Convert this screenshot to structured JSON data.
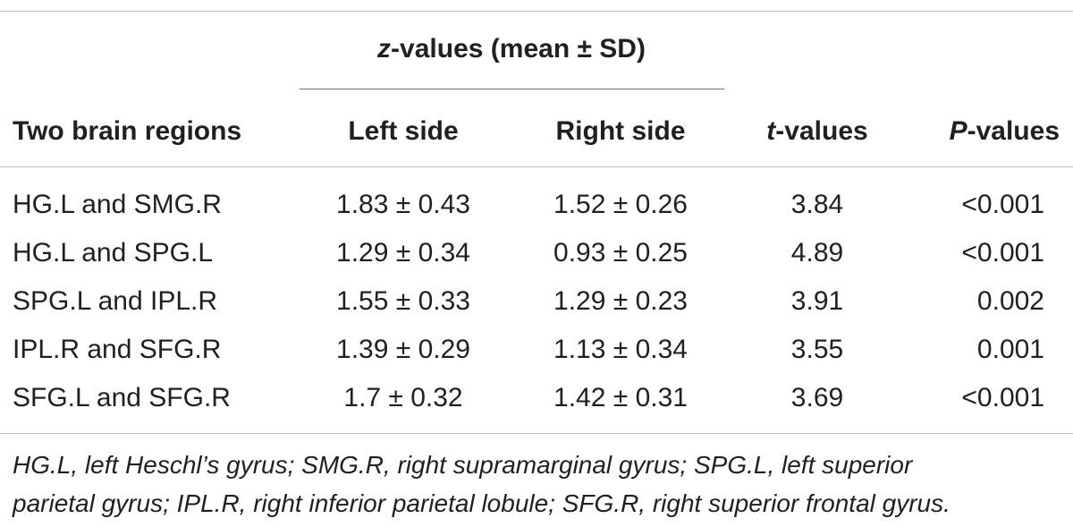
{
  "table": {
    "group_header": {
      "variable": "z",
      "suffix": "-values (mean ± SD)"
    },
    "columns": {
      "region": "Two brain regions",
      "left": "Left side",
      "right": "Right side",
      "t_var": "t",
      "t_suffix": "-values",
      "p_var": "P",
      "p_suffix": "-values"
    },
    "rows": [
      {
        "region": "HG.L and SMG.R",
        "left": "1.83 ± 0.43",
        "right": "1.52 ± 0.26",
        "t": "3.84",
        "p": "<0.001"
      },
      {
        "region": "HG.L and SPG.L",
        "left": "1.29 ± 0.34",
        "right": "0.93 ± 0.25",
        "t": "4.89",
        "p": "<0.001"
      },
      {
        "region": "SPG.L and IPL.R",
        "left": "1.55 ± 0.33",
        "right": "1.29 ± 0.23",
        "t": "3.91",
        "p": "0.002"
      },
      {
        "region": "IPL.R and SFG.R",
        "left": "1.39 ± 0.29",
        "right": "1.13 ± 0.34",
        "t": "3.55",
        "p": "0.001"
      },
      {
        "region": "SFG.L and SFG.R",
        "left": "1.7 ± 0.32",
        "right": "1.42 ± 0.31",
        "t": "3.69",
        "p": "<0.001"
      }
    ],
    "footnote": {
      "line1": "HG.L, left Heschl’s gyrus; SMG.R, right supramarginal gyrus; SPG.L, left superior",
      "line2": "parietal gyrus; IPL.R, right inferior parietal lobule; SFG.R, right superior frontal gyrus."
    }
  }
}
